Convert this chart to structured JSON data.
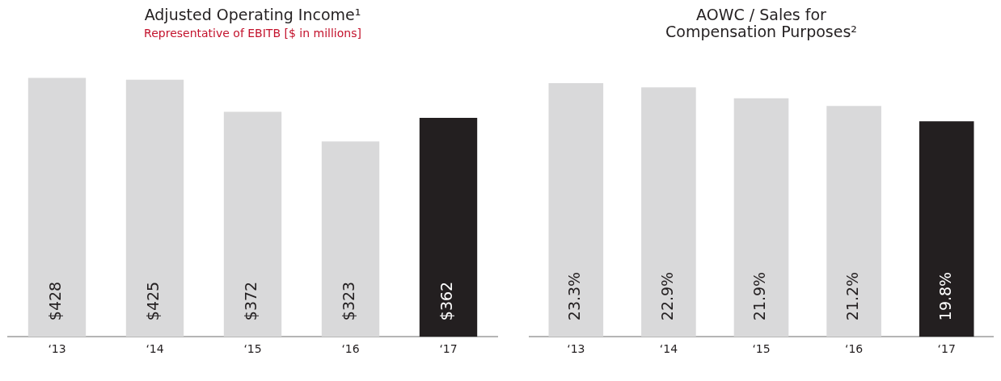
{
  "chart_data": [
    {
      "type": "bar",
      "title": "Adjusted Operating Income¹",
      "subtitle": "Representative of EBITB [$ in millions]",
      "categories": [
        "‘13",
        "‘14",
        "‘15",
        "‘16",
        "‘17"
      ],
      "values": [
        428,
        425,
        372,
        323,
        362
      ],
      "colors": [
        "#d9d9da",
        "#d9d9da",
        "#d9d9da",
        "#d9d9da",
        "#231f20"
      ],
      "value_labels": [
        "$428",
        "$425",
        "$372",
        "$323",
        "$362"
      ],
      "grid": false,
      "legend": false,
      "tick_labels": "x"
    },
    {
      "type": "bar",
      "title": "AOWC / Sales for Compensation Purposes²",
      "categories": [
        "‘13",
        "‘14",
        "‘15",
        "‘16",
        "‘17"
      ],
      "values": [
        23.3,
        22.9,
        21.9,
        21.2,
        19.8
      ],
      "colors": [
        "#d9d9da",
        "#d9d9da",
        "#d9d9da",
        "#d9d9da",
        "#231f20"
      ],
      "value_labels": [
        "23.3%",
        "22.9%",
        "21.9%",
        "21.2%",
        "19.8%"
      ],
      "grid": false,
      "legend": false,
      "tick_labels": "x"
    }
  ]
}
